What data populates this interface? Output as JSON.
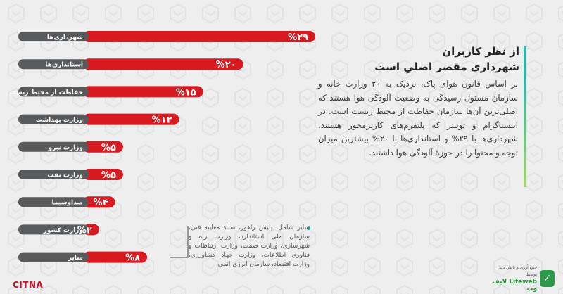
{
  "chart_data": {
    "type": "bar",
    "orientation": "horizontal",
    "categories": [
      "شهرداری‌ها",
      "استانداری‌ها",
      "حفاظت از محیط زیست",
      "وزارت بهداشت",
      "وزارت نیرو",
      "وزارت نفت",
      "صداوسیما",
      "وزارت کشور",
      "سایر"
    ],
    "value_labels": [
      "%۲۹",
      "%۲۰",
      "%۱۵",
      "%۱۲",
      "%۵",
      "%۵",
      "%۴",
      "%۲",
      "%۸"
    ],
    "values": [
      29,
      20,
      15,
      12,
      5,
      5,
      4,
      2,
      8
    ],
    "colors": {
      "bar": "#d71920",
      "label_pill": "#585a5c",
      "value_text": "#ffffff"
    }
  },
  "title": {
    "line1": "از نظر کاربران",
    "line2": "شهرداری مقصر اصلیِ است"
  },
  "body": "بر اساس قانون هوای پاک، نزدیک به ۲۰ وزارت خانه و سازمان مسئول رسیدگی به وضعیت آلودگی هوا هستند که اصلی‌ترین آن‌ها سازمان حفاظت از محیط زیست است. در اینستاگرام و توییتر که پلتفرم‌های کاربرمحور هستند، شهرداری‌ها با ۲۹% و استانداری‌ها با ۲۰% بیشترین میزان توجه و محتوا را در حوزهٔ آلودگی هوا داشتند.",
  "note": "سایر شامل: پلیس راهور، ستاد معاینه فنی، سازمان ملی استاندارد، وزارت راه و شهرسازی، وزارت صمت، وزارت ارتباطات و فناوری اطلاعات، وزارت جهاد کشاورزی، وزارت اقتصاد، سازمان انرژی اتمی",
  "logos": {
    "left": "CITNA",
    "right_tag": "جمع آوری و پایش دیتا توسط",
    "right_name": "لایف وب",
    "right_name_latin": "Lifeweb"
  }
}
